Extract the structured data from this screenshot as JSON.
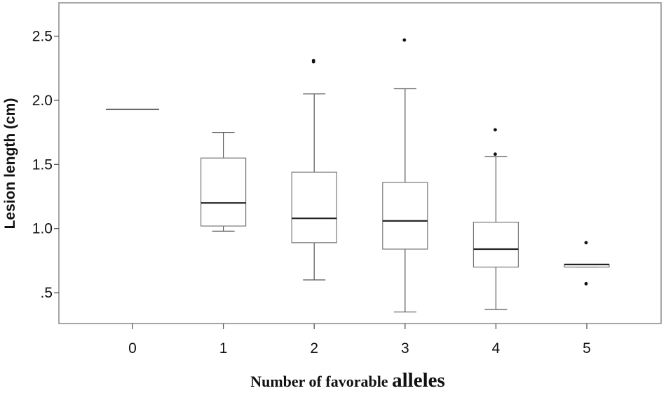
{
  "chart_data": {
    "type": "box",
    "xlabel": "Number of favorable ",
    "xlabel_emph": "alleles",
    "ylabel": "Lesion length (cm)",
    "ylim": [
      0.26,
      2.76
    ],
    "yticks": [
      0.5,
      1.0,
      1.5,
      2.0,
      2.5
    ],
    "ytick_labels": [
      ".5",
      "1.0",
      "1.5",
      "2.0",
      "2.5"
    ],
    "categories": [
      "0",
      "1",
      "2",
      "3",
      "4",
      "5"
    ],
    "grid": false,
    "boxes": [
      {
        "category": "0",
        "min": 1.93,
        "q1": 1.93,
        "median": 1.93,
        "q3": 1.93,
        "max": 1.93,
        "outliers": []
      },
      {
        "category": "1",
        "min": 0.98,
        "q1": 1.02,
        "median": 1.2,
        "q3": 1.55,
        "max": 1.75,
        "outliers": []
      },
      {
        "category": "2",
        "min": 0.6,
        "q1": 0.89,
        "median": 1.08,
        "q3": 1.44,
        "max": 2.05,
        "outliers": [
          2.3,
          2.31
        ]
      },
      {
        "category": "3",
        "min": 0.35,
        "q1": 0.84,
        "median": 1.06,
        "q3": 1.36,
        "max": 2.09,
        "outliers": [
          2.47
        ]
      },
      {
        "category": "4",
        "min": 0.37,
        "q1": 0.7,
        "median": 0.84,
        "q3": 1.05,
        "max": 1.56,
        "outliers": [
          1.58,
          1.77
        ]
      },
      {
        "category": "5",
        "min": 0.7,
        "q1": 0.7,
        "median": 0.72,
        "q3": 0.72,
        "max": 0.72,
        "outliers": [
          0.57,
          0.89
        ]
      }
    ]
  }
}
